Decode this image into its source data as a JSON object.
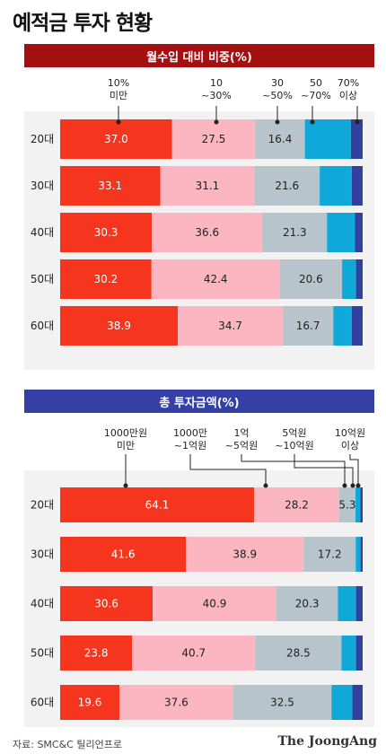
{
  "title": "예적금 투자 현황",
  "source": "자료: SMC&C 틸리언프로",
  "logo": "The JoongAng",
  "colors": {
    "seg1": "#f5351d",
    "seg2": "#fbb6c1",
    "seg3": "#b7c4cc",
    "seg4": "#0fa8d8",
    "seg5": "#34409d",
    "banner_red": "#a40f12",
    "banner_blue": "#3540a6"
  },
  "chart_data": [
    {
      "type": "bar",
      "stacked": "horizontal-100%",
      "title": "월수입 대비 비중(%)",
      "categories": [
        "20대",
        "30대",
        "40대",
        "50대",
        "60대"
      ],
      "legend_labels": [
        [
          "10%",
          "미만"
        ],
        [
          "10",
          "~30%"
        ],
        [
          "30",
          "~50%"
        ],
        [
          "50",
          "~70%"
        ],
        [
          "70%",
          "이상"
        ]
      ],
      "series": [
        {
          "values": [
            37.0,
            33.1,
            30.3,
            30.2,
            38.9
          ],
          "labels": [
            "37.0",
            "33.1",
            "30.3",
            "30.2",
            "38.9"
          ]
        },
        {
          "values": [
            27.5,
            31.1,
            36.6,
            42.4,
            34.7
          ],
          "labels": [
            "27.5",
            "31.1",
            "36.6",
            "42.4",
            "34.7"
          ]
        },
        {
          "values": [
            16.4,
            21.6,
            21.3,
            20.6,
            16.7
          ],
          "labels": [
            "16.4",
            "21.6",
            "21.3",
            "20.6",
            "16.7"
          ]
        },
        {
          "values": [
            15.2,
            10.6,
            9.2,
            4.6,
            6.1
          ],
          "labels": [
            "",
            "",
            "",
            "",
            ""
          ]
        },
        {
          "values": [
            3.9,
            3.6,
            2.6,
            2.2,
            3.6
          ],
          "labels": [
            "",
            "",
            "",
            "",
            ""
          ]
        }
      ]
    },
    {
      "type": "bar",
      "stacked": "horizontal-100%",
      "title": "총 투자금액(%)",
      "categories": [
        "20대",
        "30대",
        "40대",
        "50대",
        "60대"
      ],
      "legend_labels": [
        [
          "1000만원",
          "미만"
        ],
        [
          "1000만",
          "~1억원"
        ],
        [
          "1억",
          "~5억원"
        ],
        [
          "5억원",
          "~10억원"
        ],
        [
          "10억원",
          "이상"
        ]
      ],
      "series": [
        {
          "values": [
            64.1,
            41.6,
            30.6,
            23.8,
            19.6
          ],
          "labels": [
            "64.1",
            "41.6",
            "30.6",
            "23.8",
            "19.6"
          ]
        },
        {
          "values": [
            28.2,
            38.9,
            40.9,
            40.7,
            37.6
          ],
          "labels": [
            "28.2",
            "38.9",
            "40.9",
            "40.7",
            "37.6"
          ]
        },
        {
          "values": [
            5.3,
            17.2,
            20.3,
            28.5,
            32.5
          ],
          "labels": [
            "5.3",
            "17.2",
            "20.3",
            "28.5",
            "32.5"
          ]
        },
        {
          "values": [
            1.6,
            1.6,
            6.0,
            4.8,
            6.9
          ],
          "labels": [
            "",
            "",
            "",
            "",
            ""
          ]
        },
        {
          "values": [
            0.8,
            0.7,
            2.2,
            2.2,
            3.4
          ],
          "labels": [
            "",
            "",
            "",
            "",
            ""
          ]
        }
      ]
    }
  ]
}
